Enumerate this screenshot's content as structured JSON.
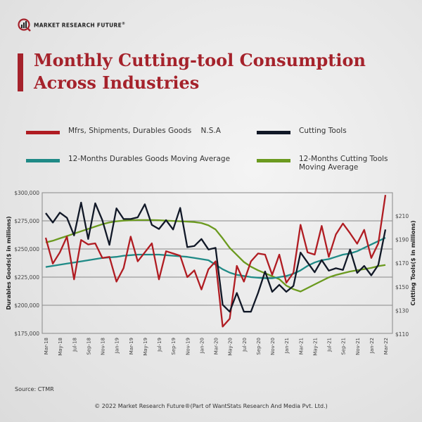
{
  "brand": {
    "name": "MARKET RESEARCH FUTURE",
    "registered": "®"
  },
  "title_line1": "Monthly Cutting-tool Consumption",
  "title_line2": "Across Industries",
  "source": "Source: CTMR",
  "copyright": "© 2022 Market Research Future®(Part of WantStats Research And Media Pvt. Ltd.)",
  "colors": {
    "accent": "#a5222b",
    "durables": "#b01c22",
    "cutting_tools": "#111827",
    "durables_avg": "#1f8a86",
    "cutting_avg": "#6b9a1f"
  },
  "chart_data": {
    "type": "line",
    "title": "Monthly Cutting-tool Consumption Across Industries",
    "legend_placement": "top",
    "grid": true,
    "y_left": {
      "label": "Durables Goods($ in millions)",
      "range": [
        175000,
        300000
      ],
      "ticks": [
        "$175,000",
        "$200,000",
        "$225,000",
        "$250,000",
        "$275,000",
        "$300,000"
      ],
      "tick_values": [
        175000,
        200000,
        225000,
        250000,
        275000,
        300000
      ]
    },
    "y_right": {
      "label": "Cutting Tools($ in millions)",
      "range": [
        110,
        220
      ],
      "ticks": [
        "$110",
        "$130",
        "$150",
        "$170",
        "$190",
        "$210"
      ],
      "tick_values": [
        110,
        130,
        150,
        170,
        190,
        210
      ]
    },
    "x_tick_labels": [
      "Mar-18",
      "May-18",
      "Jul-18",
      "Sep-18",
      "Nov-18",
      "Jan-19",
      "Mar-19",
      "May-19",
      "Jul-19",
      "Sep-19",
      "Nov-19",
      "Jan-20",
      "Mar-20",
      "May-20",
      "Jul-20",
      "Sep-20",
      "Nov-20",
      "Jan-21",
      "Mar-21",
      "May-21",
      "Jul-21",
      "Sep-21",
      "Nov-21",
      "Jan-22",
      "Mar-22"
    ],
    "x_start": "Mar-18",
    "x_end": "Mar-22",
    "x_interval": "monthly",
    "series": [
      {
        "name": "Mfrs, Shipments, Durables Goods    N.S.A",
        "axis": "left",
        "color": "#b01c22",
        "values": [
          260000,
          237000,
          247000,
          261000,
          223000,
          258000,
          254000,
          255000,
          242000,
          243000,
          221000,
          233000,
          261000,
          239000,
          247000,
          255000,
          223000,
          248000,
          246000,
          244000,
          225000,
          231000,
          214000,
          232000,
          239000,
          181000,
          188000,
          235000,
          221000,
          239000,
          246000,
          245000,
          227000,
          245000,
          220000,
          229000,
          271500,
          247000,
          245000,
          270500,
          243000,
          263000,
          272600,
          264000,
          254700,
          267000,
          242000,
          255000,
          298000
        ]
      },
      {
        "name": "Cutting Tools",
        "axis": "right",
        "color": "#111827",
        "values": [
          212.4,
          204.4,
          212.8,
          208.4,
          193.5,
          221.3,
          190.5,
          220.7,
          206.4,
          185.5,
          216.4,
          207.4,
          207.4,
          208.8,
          219.9,
          202.4,
          198.9,
          206.4,
          198.5,
          216.8,
          183.6,
          184.5,
          190.5,
          181.6,
          183,
          134.8,
          128.9,
          144.8,
          128.9,
          128.9,
          144.8,
          163,
          145.8,
          151.7,
          145.8,
          150.8,
          179,
          170.6,
          162.3,
          172.6,
          163.7,
          165.7,
          164.3,
          181.6,
          161.7,
          167.7,
          159.7,
          168.6,
          198.5
        ]
      },
      {
        "name": "12-Months Durables Goods Moving Average",
        "axis": "left",
        "color": "#1f8a86",
        "values": [
          234000,
          235000,
          236000,
          237000,
          238000,
          239000,
          240000,
          241000,
          242000,
          242500,
          243000,
          244000,
          244500,
          245000,
          245000,
          245000,
          245000,
          244500,
          244000,
          243500,
          243000,
          242000,
          241000,
          240000,
          236000,
          232000,
          229000,
          227000,
          226000,
          225000,
          224500,
          224000,
          224000,
          225000,
          226000,
          228000,
          231000,
          235000,
          238000,
          240000,
          241000,
          243000,
          245000,
          246000,
          248000,
          251000,
          254000,
          257000,
          260000
        ]
      },
      {
        "name": "12-Months Cutting Tools Moving Average",
        "axis": "right",
        "color": "#6b9a1f",
        "values": [
          187.5,
          189,
          191,
          193,
          195,
          197,
          199,
          201,
          203,
          204.5,
          205.5,
          206,
          206.3,
          206.5,
          206.5,
          206.5,
          206.3,
          206,
          205.8,
          205.5,
          205.2,
          204.8,
          204,
          202,
          198.5,
          191,
          183,
          177,
          171,
          167,
          164,
          161.5,
          159,
          156.5,
          151,
          148,
          146,
          149,
          152,
          155,
          158,
          160,
          161.5,
          163,
          164,
          165,
          166,
          167.5,
          168.5
        ]
      }
    ]
  },
  "legend": {
    "durables": "Mfrs, Shipments, Durables Goods    N.S.A",
    "cutting": "Cutting Tools",
    "durables_avg": "12-Months Durables Goods Moving Average",
    "cutting_avg_line1": "12-Months Cutting Tools",
    "cutting_avg_line2": "Moving Average"
  }
}
